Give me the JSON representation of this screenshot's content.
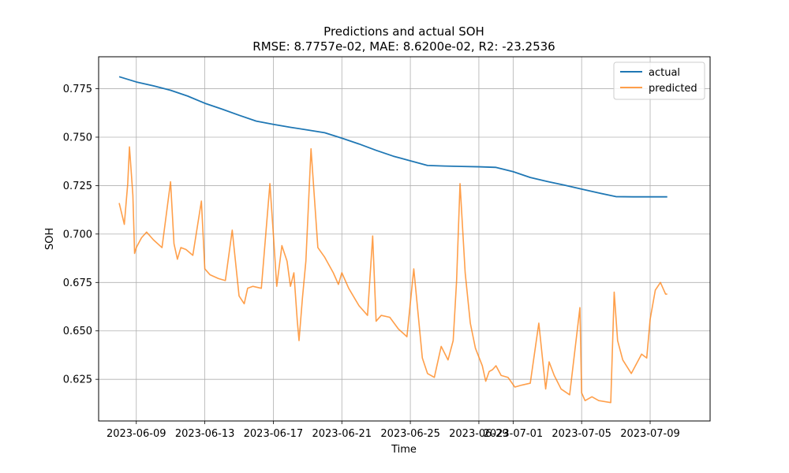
{
  "chart_data": {
    "type": "line",
    "title": "Predictions and actual SOH",
    "subtitle": "RMSE: 8.7757e-02, MAE: 8.6200e-02, R2: -23.2536",
    "xlabel": "Time",
    "ylabel": "SOH",
    "xlim_days": [
      -1.2,
      34.5
    ],
    "ylim": [
      0.6035,
      0.7915
    ],
    "x_origin_date": "2023-06-08",
    "x_tick_labels": [
      "2023-06-09",
      "2023-06-13",
      "2023-06-17",
      "2023-06-21",
      "2023-06-25",
      "2023-06-29",
      "2023-07-01",
      "2023-07-05",
      "2023-07-09"
    ],
    "x_tick_days": [
      1,
      5,
      9,
      13,
      17,
      21,
      23,
      27,
      31
    ],
    "y_ticks": [
      0.625,
      0.65,
      0.675,
      0.7,
      0.725,
      0.75,
      0.775
    ],
    "y_tick_labels": [
      "0.625",
      "0.650",
      "0.675",
      "0.700",
      "0.725",
      "0.750",
      "0.775"
    ],
    "grid": true,
    "legend_position": "top-right",
    "colors": {
      "actual": "#1f77b4",
      "predicted": "#ff7f0e"
    },
    "series": [
      {
        "name": "actual",
        "x_days": [
          0,
          1,
          2,
          3,
          4,
          5,
          6,
          7,
          8,
          9,
          10,
          11,
          12,
          13,
          14,
          15,
          16,
          17,
          18,
          19,
          20,
          21,
          22,
          23,
          24,
          25,
          26,
          27,
          28,
          29,
          30,
          31,
          32
        ],
        "values": [
          0.7812,
          0.7785,
          0.7765,
          0.7742,
          0.7712,
          0.7675,
          0.7645,
          0.7613,
          0.7583,
          0.7566,
          0.7551,
          0.7537,
          0.7523,
          0.7495,
          0.7465,
          0.7432,
          0.7402,
          0.7378,
          0.7354,
          0.7351,
          0.7349,
          0.7347,
          0.7344,
          0.7322,
          0.7292,
          0.7271,
          0.7252,
          0.7232,
          0.7212,
          0.7193,
          0.7192,
          0.7192,
          0.7192
        ]
      },
      {
        "name": "predicted",
        "x_days": [
          0.0,
          0.3,
          0.5,
          0.6,
          0.8,
          0.9,
          1.0,
          1.3,
          1.6,
          2.0,
          2.5,
          3.0,
          3.2,
          3.4,
          3.6,
          3.9,
          4.3,
          4.8,
          5.0,
          5.3,
          5.8,
          6.2,
          6.6,
          7.0,
          7.3,
          7.5,
          7.8,
          8.3,
          8.8,
          9.0,
          9.2,
          9.5,
          9.8,
          10.0,
          10.2,
          10.4,
          10.5,
          10.7,
          10.9,
          11.2,
          11.6,
          12.0,
          12.5,
          12.8,
          13.0,
          13.4,
          14.0,
          14.5,
          14.8,
          15.0,
          15.3,
          15.8,
          16.3,
          16.8,
          17.2,
          17.7,
          18.0,
          18.4,
          18.8,
          19.2,
          19.5,
          19.7,
          19.9,
          20.2,
          20.5,
          20.8,
          21.2,
          21.4,
          21.6,
          21.8,
          22.0,
          22.3,
          22.7,
          23.1,
          23.5,
          24.0,
          24.5,
          24.9,
          25.1,
          25.4,
          25.8,
          26.3,
          26.9,
          27.0,
          27.2,
          27.6,
          28.0,
          28.7,
          28.9,
          29.1,
          29.4,
          29.9,
          30.5,
          30.8,
          31.0,
          31.3,
          31.6,
          31.9,
          32.0
        ],
        "values": [
          0.716,
          0.705,
          0.726,
          0.745,
          0.72,
          0.69,
          0.693,
          0.698,
          0.701,
          0.697,
          0.693,
          0.727,
          0.695,
          0.687,
          0.693,
          0.692,
          0.689,
          0.717,
          0.682,
          0.679,
          0.677,
          0.676,
          0.702,
          0.668,
          0.664,
          0.672,
          0.673,
          0.672,
          0.726,
          0.7,
          0.673,
          0.694,
          0.686,
          0.673,
          0.68,
          0.655,
          0.645,
          0.667,
          0.686,
          0.744,
          0.693,
          0.688,
          0.68,
          0.674,
          0.68,
          0.672,
          0.663,
          0.658,
          0.699,
          0.655,
          0.658,
          0.657,
          0.651,
          0.647,
          0.682,
          0.636,
          0.628,
          0.626,
          0.642,
          0.635,
          0.645,
          0.676,
          0.726,
          0.68,
          0.654,
          0.641,
          0.632,
          0.624,
          0.629,
          0.63,
          0.632,
          0.627,
          0.626,
          0.621,
          0.622,
          0.623,
          0.654,
          0.62,
          0.634,
          0.627,
          0.62,
          0.617,
          0.662,
          0.618,
          0.614,
          0.616,
          0.614,
          0.613,
          0.67,
          0.645,
          0.635,
          0.628,
          0.638,
          0.636,
          0.656,
          0.671,
          0.675,
          0.669,
          0.669
        ]
      }
    ]
  }
}
